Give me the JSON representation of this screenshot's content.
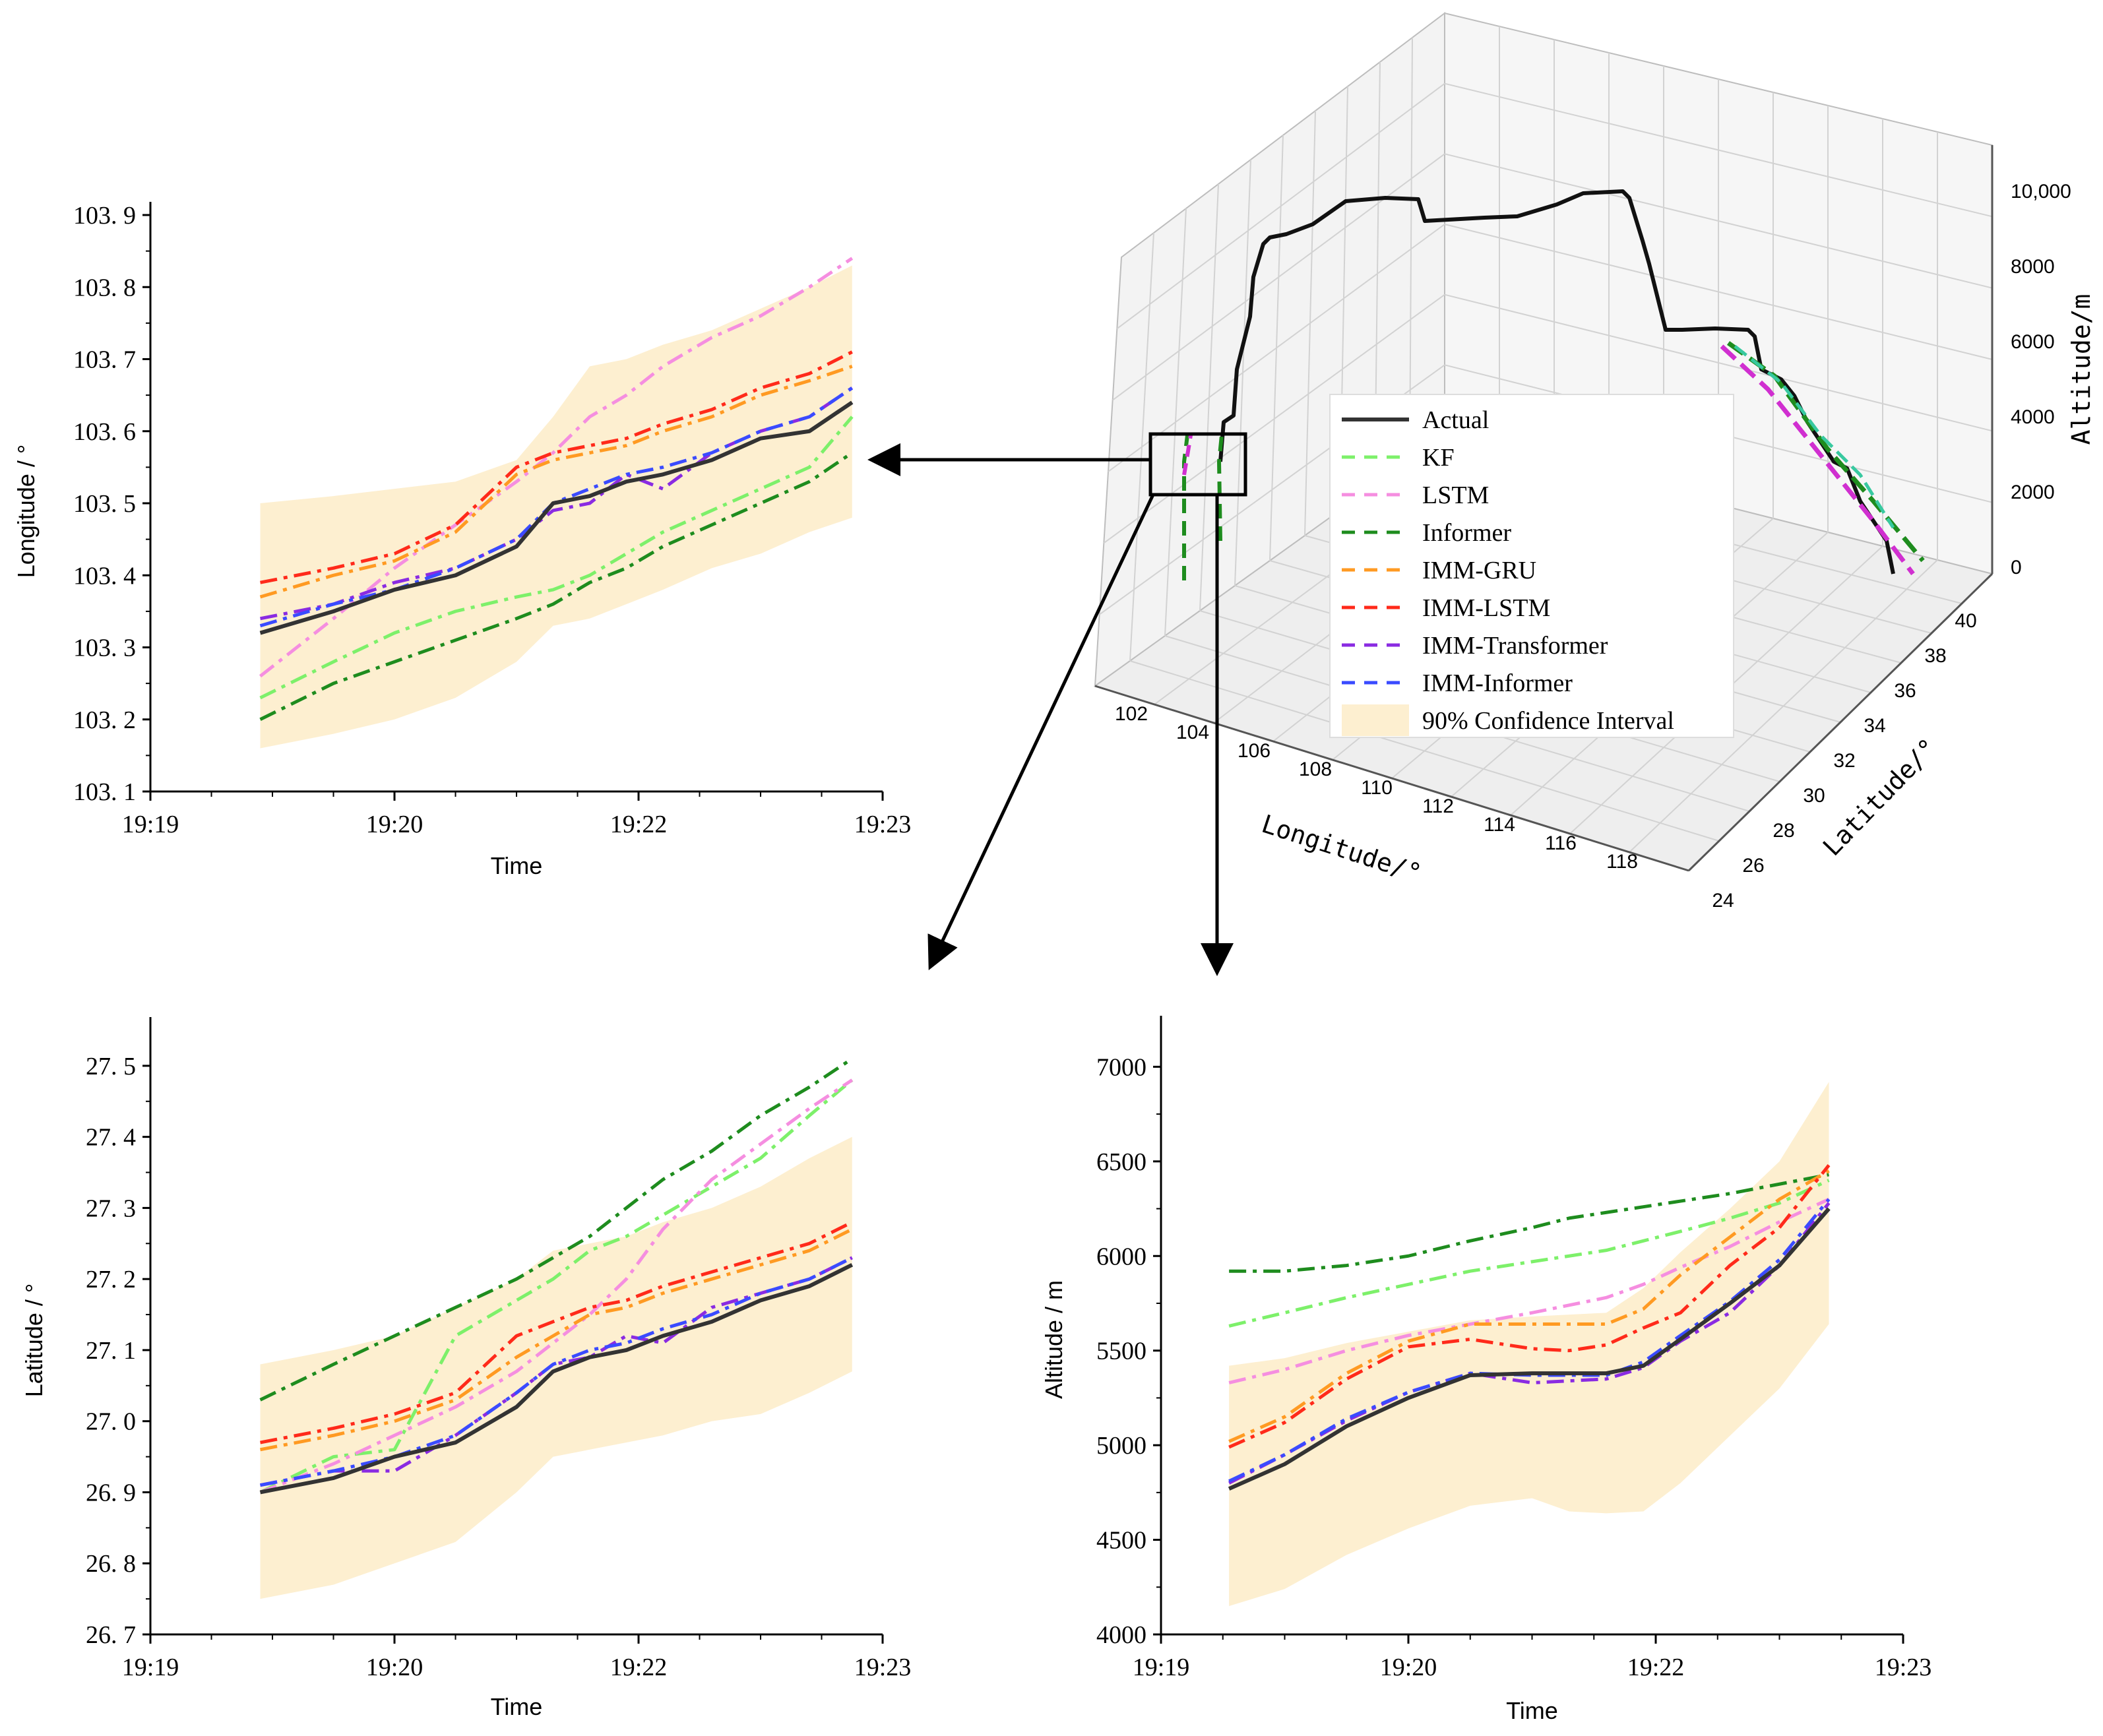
{
  "colors": {
    "actual": "#333333",
    "kf": "#7df06a",
    "lstm": "#f58ee0",
    "informer": "#1e8c1e",
    "imm_gru": "#ff9a22",
    "imm_lstm": "#ff2a1a",
    "imm_transformer": "#8a2be2",
    "imm_informer": "#3a4bff",
    "ci": "#fdefd0"
  },
  "legend": [
    {
      "key": "actual",
      "label": "Actual"
    },
    {
      "key": "kf",
      "label": "KF"
    },
    {
      "key": "lstm",
      "label": "LSTM"
    },
    {
      "key": "informer",
      "label": "Informer"
    },
    {
      "key": "imm_gru",
      "label": "IMM-GRU"
    },
    {
      "key": "imm_lstm",
      "label": "IMM-LSTM"
    },
    {
      "key": "imm_transformer",
      "label": "IMM-Transformer"
    },
    {
      "key": "imm_informer",
      "label": "IMM-Informer"
    },
    {
      "key": "ci",
      "label": "90% Confidence Interval"
    }
  ],
  "chart_data": [
    {
      "id": "longitude",
      "type": "line",
      "xlabel": "Time",
      "ylabel": "Longitude / °",
      "x_ticks": [
        "19:19",
        "19:20",
        "19:22",
        "19:23"
      ],
      "y_ticks": [
        "103. 1",
        "103. 2",
        "103. 3",
        "103. 4",
        "103. 5",
        "103. 6",
        "103. 7",
        "103. 8",
        "103. 9"
      ],
      "xlim": [
        0,
        6
      ],
      "ylim": [
        103.1,
        103.9
      ],
      "x": [
        0.9,
        1.5,
        2.0,
        2.5,
        3.0,
        3.3,
        3.6,
        3.9,
        4.2,
        4.6,
        5.0,
        5.4,
        5.75
      ],
      "ci": {
        "upper": [
          103.5,
          103.51,
          103.52,
          103.53,
          103.56,
          103.62,
          103.69,
          103.7,
          103.72,
          103.74,
          103.77,
          103.8,
          103.83
        ],
        "lower": [
          103.16,
          103.18,
          103.2,
          103.23,
          103.28,
          103.33,
          103.34,
          103.36,
          103.38,
          103.41,
          103.43,
          103.46,
          103.48
        ]
      },
      "series": [
        {
          "key": "actual",
          "values": [
            103.32,
            103.35,
            103.38,
            103.4,
            103.44,
            103.5,
            103.51,
            103.53,
            103.54,
            103.56,
            103.59,
            103.6,
            103.64
          ]
        },
        {
          "key": "kf",
          "values": [
            103.23,
            103.28,
            103.32,
            103.35,
            103.37,
            103.38,
            103.4,
            103.43,
            103.46,
            103.49,
            103.52,
            103.55,
            103.62
          ]
        },
        {
          "key": "lstm",
          "values": [
            103.26,
            103.34,
            103.41,
            103.47,
            103.53,
            103.57,
            103.62,
            103.65,
            103.69,
            103.73,
            103.76,
            103.8,
            103.84
          ]
        },
        {
          "key": "informer",
          "values": [
            103.2,
            103.25,
            103.28,
            103.31,
            103.34,
            103.36,
            103.39,
            103.41,
            103.44,
            103.47,
            103.5,
            103.53,
            103.57
          ]
        },
        {
          "key": "imm_gru",
          "values": [
            103.37,
            103.4,
            103.42,
            103.46,
            103.54,
            103.56,
            103.57,
            103.58,
            103.6,
            103.62,
            103.65,
            103.67,
            103.69
          ]
        },
        {
          "key": "imm_lstm",
          "values": [
            103.39,
            103.41,
            103.43,
            103.47,
            103.55,
            103.57,
            103.58,
            103.59,
            103.61,
            103.63,
            103.66,
            103.68,
            103.71
          ]
        },
        {
          "key": "imm_transformer",
          "values": [
            103.34,
            103.36,
            103.39,
            103.41,
            103.45,
            103.49,
            103.5,
            103.54,
            103.52,
            103.57,
            103.6,
            103.62,
            103.66
          ]
        },
        {
          "key": "imm_informer",
          "values": [
            103.33,
            103.36,
            103.38,
            103.41,
            103.45,
            103.5,
            103.52,
            103.54,
            103.55,
            103.57,
            103.6,
            103.62,
            103.66
          ]
        }
      ]
    },
    {
      "id": "latitude",
      "type": "line",
      "xlabel": "Time",
      "ylabel": "Latitude / °",
      "x_ticks": [
        "19:19",
        "19:20",
        "19:22",
        "19:23"
      ],
      "y_ticks": [
        "26. 7",
        "26. 8",
        "26. 9",
        "27. 0",
        "27. 1",
        "27. 2",
        "27. 3",
        "27. 4",
        "27. 5"
      ],
      "xlim": [
        0,
        6
      ],
      "ylim": [
        26.7,
        27.55
      ],
      "x": [
        0.9,
        1.5,
        2.0,
        2.5,
        3.0,
        3.3,
        3.6,
        3.9,
        4.2,
        4.6,
        5.0,
        5.4,
        5.75
      ],
      "ci": {
        "upper": [
          27.08,
          27.1,
          27.12,
          27.16,
          27.2,
          27.24,
          27.25,
          27.26,
          27.28,
          27.3,
          27.33,
          27.37,
          27.4
        ],
        "lower": [
          26.75,
          26.77,
          26.8,
          26.83,
          26.9,
          26.95,
          26.96,
          26.97,
          26.98,
          27.0,
          27.01,
          27.04,
          27.07
        ]
      },
      "series": [
        {
          "key": "actual",
          "values": [
            26.9,
            26.92,
            26.95,
            26.97,
            27.02,
            27.07,
            27.09,
            27.1,
            27.12,
            27.14,
            27.17,
            27.19,
            27.22
          ]
        },
        {
          "key": "kf",
          "values": [
            26.9,
            26.95,
            26.96,
            27.12,
            27.17,
            27.2,
            27.24,
            27.26,
            27.29,
            27.33,
            27.37,
            27.43,
            27.48
          ]
        },
        {
          "key": "lstm",
          "values": [
            26.9,
            26.94,
            26.98,
            27.02,
            27.07,
            27.11,
            27.15,
            27.2,
            27.27,
            27.34,
            27.39,
            27.44,
            27.48
          ]
        },
        {
          "key": "informer",
          "values": [
            27.03,
            27.08,
            27.12,
            27.16,
            27.2,
            27.23,
            27.26,
            27.3,
            27.34,
            27.38,
            27.43,
            27.47,
            27.51
          ]
        },
        {
          "key": "imm_gru",
          "values": [
            26.96,
            26.98,
            27.0,
            27.03,
            27.09,
            27.12,
            27.15,
            27.16,
            27.18,
            27.2,
            27.22,
            27.24,
            27.27
          ]
        },
        {
          "key": "imm_lstm",
          "values": [
            26.97,
            26.99,
            27.01,
            27.04,
            27.12,
            27.14,
            27.16,
            27.17,
            27.19,
            27.21,
            27.23,
            27.25,
            27.28
          ]
        },
        {
          "key": "imm_transformer",
          "values": [
            26.91,
            26.93,
            26.93,
            26.98,
            27.04,
            27.08,
            27.09,
            27.12,
            27.11,
            27.16,
            27.18,
            27.2,
            27.23
          ]
        },
        {
          "key": "imm_informer",
          "values": [
            26.91,
            26.93,
            26.95,
            26.98,
            27.04,
            27.08,
            27.1,
            27.11,
            27.13,
            27.15,
            27.18,
            27.2,
            27.23
          ]
        }
      ]
    },
    {
      "id": "altitude",
      "type": "line",
      "xlabel": "Time",
      "ylabel": "Altitude / m",
      "x_ticks": [
        "19:19",
        "19:20",
        "19:22",
        "19:23"
      ],
      "y_ticks": [
        "4000",
        "4500",
        "5000",
        "5500",
        "6000",
        "6500",
        "7000"
      ],
      "xlim": [
        0,
        6
      ],
      "ylim": [
        4000,
        7200
      ],
      "x": [
        0.55,
        1.0,
        1.5,
        2.0,
        2.5,
        3.0,
        3.3,
        3.6,
        3.9,
        4.2,
        4.6,
        5.0,
        5.4
      ],
      "ci": {
        "upper": [
          5420,
          5460,
          5540,
          5600,
          5660,
          5680,
          5690,
          5700,
          5830,
          6020,
          6250,
          6500,
          6920
        ],
        "lower": [
          4150,
          4240,
          4420,
          4560,
          4680,
          4720,
          4650,
          4640,
          4650,
          4800,
          5050,
          5300,
          5640
        ]
      },
      "series": [
        {
          "key": "actual",
          "values": [
            4770,
            4900,
            5100,
            5250,
            5370,
            5380,
            5380,
            5380,
            5420,
            5560,
            5750,
            5950,
            6250
          ]
        },
        {
          "key": "kf",
          "values": [
            5630,
            5700,
            5780,
            5850,
            5920,
            5970,
            6000,
            6030,
            6080,
            6130,
            6200,
            6280,
            6400
          ]
        },
        {
          "key": "lstm",
          "values": [
            5330,
            5400,
            5500,
            5580,
            5640,
            5700,
            5740,
            5780,
            5850,
            5940,
            6050,
            6180,
            6300
          ]
        },
        {
          "key": "informer",
          "values": [
            5920,
            5920,
            5950,
            6000,
            6080,
            6150,
            6200,
            6230,
            6260,
            6290,
            6330,
            6380,
            6430
          ]
        },
        {
          "key": "imm_gru",
          "values": [
            5020,
            5150,
            5380,
            5550,
            5640,
            5640,
            5640,
            5640,
            5720,
            5900,
            6100,
            6300,
            6450
          ]
        },
        {
          "key": "imm_lstm",
          "values": [
            4990,
            5120,
            5350,
            5520,
            5560,
            5510,
            5500,
            5530,
            5620,
            5700,
            5950,
            6150,
            6480
          ]
        },
        {
          "key": "imm_transformer",
          "values": [
            4800,
            4950,
            5130,
            5280,
            5380,
            5330,
            5340,
            5350,
            5410,
            5550,
            5700,
            5950,
            6280
          ]
        },
        {
          "key": "imm_informer",
          "values": [
            4810,
            4950,
            5140,
            5280,
            5380,
            5370,
            5370,
            5370,
            5440,
            5580,
            5760,
            5980,
            6300
          ]
        }
      ]
    }
  ],
  "trajectory3d": {
    "xlabel": "Longitude/°",
    "ylabel": "Latitude/°",
    "zlabel": "Altitude/m",
    "lon_ticks": [
      "102",
      "104",
      "106",
      "108",
      "110",
      "112",
      "114",
      "116",
      "118"
    ],
    "lat_ticks": [
      "24",
      "26",
      "28",
      "30",
      "32",
      "34",
      "36",
      "38",
      "40"
    ],
    "alt_ticks": [
      "0",
      "2000",
      "4000",
      "6000",
      "8000",
      "10,000"
    ]
  }
}
